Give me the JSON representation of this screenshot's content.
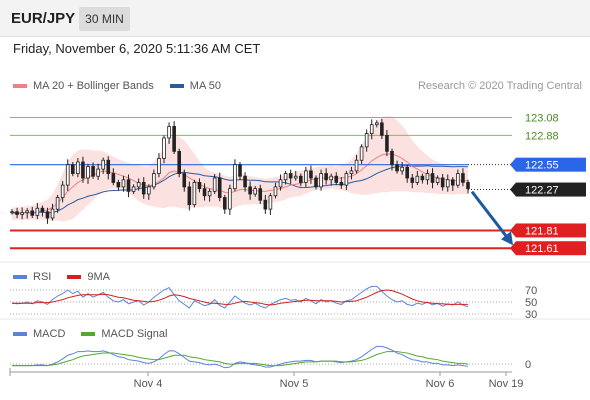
{
  "header": {
    "pair": "EUR/JPY",
    "timeframe": "30 MIN"
  },
  "datetime": "Friday, November 6, 2020 5:11:36 AM CET",
  "credit": "Research © 2020 Trading Central",
  "colors": {
    "ma20": "#f08080",
    "ma50": "#2a5aa0",
    "band": "#fbd7d7",
    "candle": "#222222",
    "resistance": "#7fbf4f",
    "pivot": "#2b66e8",
    "support": "#e02020",
    "current": "#222222",
    "rsi": "#5b83d8",
    "rsi_ma": "#d22020",
    "macd": "#5b83d8",
    "macd_signal": "#58a632",
    "arrow": "#1f5aa0"
  },
  "legends": {
    "main": [
      {
        "label": "MA 20 + Bollinger Bands",
        "color": "#f08080"
      },
      {
        "label": "MA 50",
        "color": "#2a5aa0"
      }
    ],
    "rsi": [
      {
        "label": "RSI",
        "color": "#5b83d8"
      },
      {
        "label": "9MA",
        "color": "#d22020"
      }
    ],
    "macd": [
      {
        "label": "MACD",
        "color": "#5b83d8"
      },
      {
        "label": "MACD Signal",
        "color": "#58a632"
      }
    ]
  },
  "chart_data": {
    "type": "candlestick",
    "x_ticks": [
      "Nov 4",
      "Nov 5",
      "Nov 6",
      "Nov 19"
    ],
    "levels": [
      {
        "label": "123.08",
        "value": 123.08,
        "kind": "resistance"
      },
      {
        "label": "122.88",
        "value": 122.88,
        "kind": "resistance"
      },
      {
        "label": "122.55",
        "value": 122.55,
        "kind": "pivot"
      },
      {
        "label": "122.27",
        "value": 122.27,
        "kind": "current"
      },
      {
        "label": "121.81",
        "value": 121.81,
        "kind": "support"
      },
      {
        "label": "121.61",
        "value": 121.61,
        "kind": "support"
      }
    ],
    "y_range": [
      121.5,
      123.3
    ],
    "close": [
      122.02,
      121.99,
      122.01,
      122.03,
      121.98,
      122.06,
      122.02,
      121.95,
      122.05,
      122.18,
      122.32,
      122.55,
      122.45,
      122.58,
      122.4,
      122.53,
      122.42,
      122.5,
      122.6,
      122.45,
      122.35,
      122.3,
      122.38,
      122.25,
      122.3,
      122.35,
      122.22,
      122.3,
      122.45,
      122.62,
      122.85,
      122.98,
      122.7,
      122.45,
      122.3,
      122.1,
      122.35,
      122.28,
      122.2,
      122.25,
      122.4,
      122.18,
      122.05,
      122.28,
      122.55,
      122.42,
      122.3,
      122.22,
      122.28,
      122.15,
      122.05,
      122.2,
      122.3,
      122.38,
      122.45,
      122.4,
      122.42,
      122.35,
      122.48,
      122.4,
      122.3,
      122.45,
      122.38,
      122.42,
      122.35,
      122.32,
      122.45,
      122.48,
      122.6,
      122.75,
      122.9,
      123.0,
      123.02,
      122.88,
      122.7,
      122.55,
      122.48,
      122.52,
      122.4,
      122.35,
      122.42,
      122.38,
      122.45,
      122.35,
      122.4,
      122.3,
      122.38,
      122.32,
      122.45,
      122.35,
      122.28
    ],
    "ma20": [
      122.0,
      122.0,
      122.0,
      122.01,
      122.01,
      122.02,
      122.03,
      122.04,
      122.07,
      122.12,
      122.18,
      122.25,
      122.3,
      122.35,
      122.38,
      122.41,
      122.43,
      122.46,
      122.48,
      122.47,
      122.46,
      122.44,
      122.42,
      122.4,
      122.37,
      122.34,
      122.32,
      122.31,
      122.33,
      122.36,
      122.4,
      122.46,
      122.48,
      122.46,
      122.44,
      122.4,
      122.37,
      122.33,
      122.3,
      122.28,
      122.27,
      122.26,
      122.24,
      122.23,
      122.25,
      122.27,
      122.27,
      122.26,
      122.26,
      122.25,
      122.25,
      122.26,
      122.27,
      122.28,
      122.3,
      122.32,
      122.33,
      122.34,
      122.36,
      122.38,
      122.39,
      122.4,
      122.4,
      122.41,
      122.4,
      122.4,
      122.41,
      122.42,
      122.45,
      122.49,
      122.54,
      122.59,
      122.63,
      122.66,
      122.67,
      122.67,
      122.65,
      122.62,
      122.58,
      122.53,
      122.5,
      122.47,
      122.44,
      122.42,
      122.4,
      122.39,
      122.38,
      122.37,
      122.37,
      122.37,
      122.37
    ],
    "band_width": [
      0.07,
      0.07,
      0.07,
      0.08,
      0.08,
      0.09,
      0.1,
      0.12,
      0.15,
      0.2,
      0.27,
      0.33,
      0.36,
      0.36,
      0.34,
      0.31,
      0.28,
      0.25,
      0.22,
      0.2,
      0.18,
      0.17,
      0.17,
      0.17,
      0.18,
      0.2,
      0.21,
      0.22,
      0.25,
      0.29,
      0.34,
      0.38,
      0.4,
      0.4,
      0.38,
      0.35,
      0.3,
      0.26,
      0.22,
      0.2,
      0.19,
      0.19,
      0.19,
      0.18,
      0.18,
      0.18,
      0.17,
      0.16,
      0.15,
      0.15,
      0.14,
      0.14,
      0.14,
      0.14,
      0.14,
      0.14,
      0.14,
      0.14,
      0.14,
      0.13,
      0.13,
      0.13,
      0.13,
      0.13,
      0.13,
      0.14,
      0.16,
      0.19,
      0.23,
      0.28,
      0.33,
      0.37,
      0.4,
      0.42,
      0.43,
      0.42,
      0.4,
      0.37,
      0.33,
      0.29,
      0.26,
      0.23,
      0.21,
      0.19,
      0.18,
      0.17,
      0.16,
      0.16,
      0.15,
      0.15,
      0.15
    ],
    "rsi": [
      48,
      47,
      48,
      50,
      47,
      52,
      50,
      46,
      54,
      60,
      64,
      70,
      64,
      68,
      58,
      64,
      58,
      62,
      66,
      58,
      52,
      50,
      54,
      47,
      50,
      52,
      45,
      50,
      58,
      64,
      70,
      74,
      62,
      52,
      46,
      40,
      52,
      48,
      44,
      46,
      54,
      44,
      40,
      50,
      60,
      54,
      48,
      45,
      48,
      43,
      40,
      46,
      50,
      54,
      56,
      53,
      54,
      50,
      56,
      52,
      47,
      54,
      50,
      52,
      48,
      46,
      52,
      54,
      60,
      66,
      72,
      76,
      76,
      68,
      60,
      54,
      50,
      52,
      46,
      44,
      48,
      46,
      50,
      45,
      48,
      43,
      47,
      45,
      50,
      45,
      42
    ],
    "rsi_ma": [
      48,
      48,
      48,
      48,
      48,
      49,
      49,
      49,
      50,
      52,
      54,
      57,
      59,
      61,
      62,
      62,
      62,
      62,
      63,
      62,
      60,
      58,
      57,
      55,
      53,
      52,
      51,
      50,
      51,
      53,
      56,
      60,
      62,
      61,
      59,
      56,
      54,
      52,
      50,
      48,
      48,
      47,
      46,
      46,
      48,
      50,
      51,
      50,
      49,
      48,
      46,
      45,
      46,
      48,
      49,
      50,
      51,
      52,
      53,
      53,
      52,
      52,
      52,
      52,
      51,
      50,
      51,
      51,
      52,
      55,
      58,
      62,
      66,
      69,
      70,
      69,
      66,
      63,
      59,
      55,
      52,
      50,
      49,
      48,
      47,
      47,
      46,
      46,
      46,
      46,
      46
    ],
    "macd": [
      -0.02,
      -0.02,
      -0.02,
      -0.02,
      -0.02,
      -0.01,
      -0.01,
      -0.02,
      0.0,
      0.03,
      0.07,
      0.12,
      0.14,
      0.17,
      0.17,
      0.18,
      0.17,
      0.17,
      0.18,
      0.16,
      0.13,
      0.1,
      0.09,
      0.06,
      0.05,
      0.04,
      0.02,
      0.01,
      0.03,
      0.07,
      0.13,
      0.18,
      0.18,
      0.14,
      0.09,
      0.04,
      0.03,
      0.02,
      0.0,
      -0.01,
      0.0,
      -0.02,
      -0.05,
      -0.04,
      0.01,
      0.03,
      0.02,
      0.0,
      -0.01,
      -0.02,
      -0.04,
      -0.04,
      -0.02,
      0.0,
      0.02,
      0.03,
      0.04,
      0.04,
      0.05,
      0.05,
      0.03,
      0.04,
      0.04,
      0.04,
      0.03,
      0.02,
      0.03,
      0.04,
      0.06,
      0.1,
      0.15,
      0.2,
      0.24,
      0.24,
      0.22,
      0.19,
      0.15,
      0.13,
      0.09,
      0.06,
      0.05,
      0.03,
      0.03,
      0.01,
      0.01,
      -0.01,
      -0.01,
      -0.02,
      -0.01,
      -0.02,
      -0.03
    ],
    "macd_signal": [
      -0.02,
      -0.02,
      -0.02,
      -0.02,
      -0.02,
      -0.02,
      -0.02,
      -0.02,
      -0.01,
      0.0,
      0.02,
      0.04,
      0.06,
      0.09,
      0.11,
      0.12,
      0.13,
      0.14,
      0.15,
      0.15,
      0.15,
      0.14,
      0.13,
      0.12,
      0.11,
      0.09,
      0.08,
      0.07,
      0.06,
      0.06,
      0.08,
      0.1,
      0.12,
      0.12,
      0.12,
      0.1,
      0.09,
      0.08,
      0.06,
      0.05,
      0.04,
      0.03,
      0.01,
      0.0,
      0.0,
      0.01,
      0.01,
      0.01,
      0.01,
      0.0,
      -0.01,
      -0.02,
      -0.02,
      -0.02,
      -0.01,
      0.0,
      0.01,
      0.02,
      0.03,
      0.03,
      0.03,
      0.04,
      0.04,
      0.04,
      0.04,
      0.03,
      0.03,
      0.03,
      0.04,
      0.05,
      0.07,
      0.1,
      0.13,
      0.15,
      0.17,
      0.17,
      0.17,
      0.16,
      0.15,
      0.13,
      0.11,
      0.1,
      0.08,
      0.07,
      0.06,
      0.04,
      0.03,
      0.02,
      0.01,
      0.01,
      0.0
    ],
    "rsi_levels": [
      "70",
      "50",
      "30"
    ],
    "macd_zero": "0",
    "macd_range": [
      -0.08,
      0.3
    ]
  }
}
